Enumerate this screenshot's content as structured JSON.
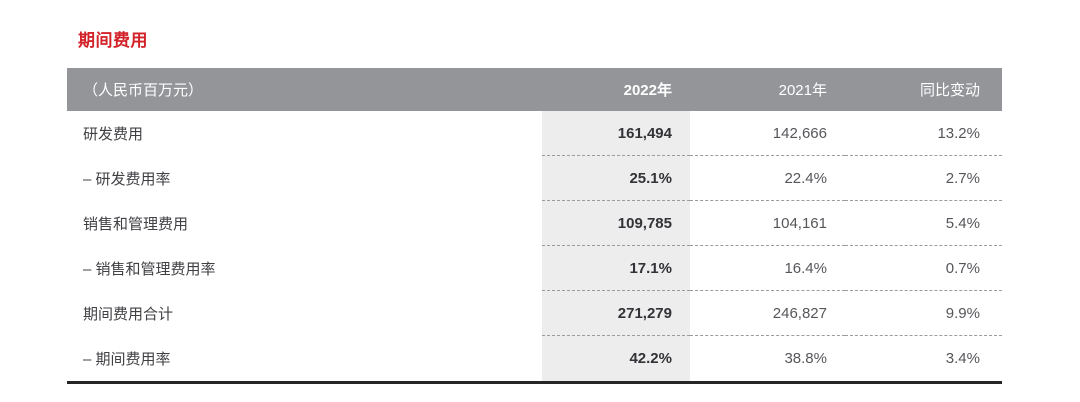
{
  "section": {
    "title": "期间费用"
  },
  "table": {
    "header": {
      "unit": "（人民币百万元）",
      "col_2022": "2022年",
      "col_2021": "2021年",
      "col_change": "同比变动"
    },
    "rows": [
      {
        "label": "研发费用",
        "y2022": "161,494",
        "y2021": "142,666",
        "change": "13.2%"
      },
      {
        "label": "– 研发费用率",
        "y2022": "25.1%",
        "y2021": "22.4%",
        "change": "2.7%"
      },
      {
        "label": "销售和管理费用",
        "y2022": "109,785",
        "y2021": "104,161",
        "change": "5.4%"
      },
      {
        "label": "– 销售和管理费用率",
        "y2022": "17.1%",
        "y2021": "16.4%",
        "change": "0.7%"
      },
      {
        "label": "期间费用合计",
        "y2022": "271,279",
        "y2021": "246,827",
        "change": "9.9%"
      },
      {
        "label": "– 期间费用率",
        "y2022": "42.2%",
        "y2021": "38.8%",
        "change": "3.4%"
      }
    ]
  },
  "colors": {
    "accent": "#d2232a",
    "header_bg": "#939598",
    "header_text": "#ffffff",
    "band_bg": "#ededee",
    "label_color": "#404044",
    "value_color": "#55565a",
    "value_2022_color": "#333337",
    "dash_color": "#9b9b9b",
    "rule_color": "#262626"
  }
}
